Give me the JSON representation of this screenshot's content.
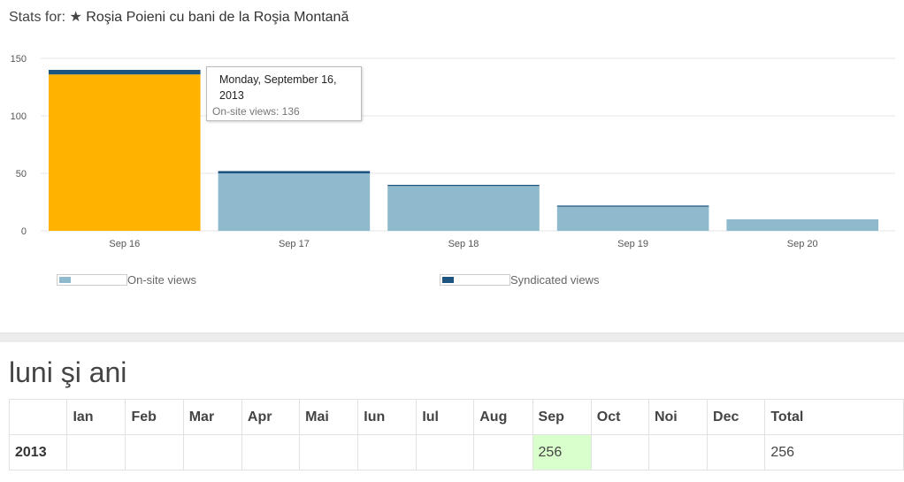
{
  "header": {
    "prefix": "Stats for:",
    "star": "★",
    "post_title": "Roşia Poieni cu bani de la Roşia Montană"
  },
  "colors": {
    "onsite": "#8fb9cc",
    "syndicated": "#1e5580",
    "highlight": "#ffb300",
    "cell_highlight": "#d9ffcc"
  },
  "chart_data": {
    "type": "bar",
    "categories": [
      "Sep 16",
      "Sep 17",
      "Sep 18",
      "Sep 19",
      "Sep 20"
    ],
    "series": [
      {
        "name": "On-site views",
        "values": [
          136,
          50,
          39,
          21,
          10
        ]
      },
      {
        "name": "Syndicated views",
        "values": [
          4,
          2,
          1,
          1,
          0
        ]
      }
    ],
    "stacked": true,
    "highlighted_category": "Sep 16",
    "ylim": [
      0,
      150
    ],
    "yticks": [
      0,
      50,
      100,
      150
    ],
    "grid": true,
    "legend_position": "bottom"
  },
  "tooltip": {
    "date": "Monday, September 16, 2013",
    "label": "On-site views: 136"
  },
  "legend": [
    {
      "label": "On-site views"
    },
    {
      "label": "Syndicated views"
    }
  ],
  "section": {
    "title": "luni şi ani"
  },
  "table": {
    "headers": [
      "",
      "Ian",
      "Feb",
      "Mar",
      "Apr",
      "Mai",
      "Iun",
      "Iul",
      "Aug",
      "Sep",
      "Oct",
      "Noi",
      "Dec",
      "Total"
    ],
    "rows": [
      {
        "cells": [
          "2013",
          "",
          "",
          "",
          "",
          "",
          "",
          "",
          "",
          "256",
          "",
          "",
          "",
          "256"
        ]
      }
    ]
  }
}
